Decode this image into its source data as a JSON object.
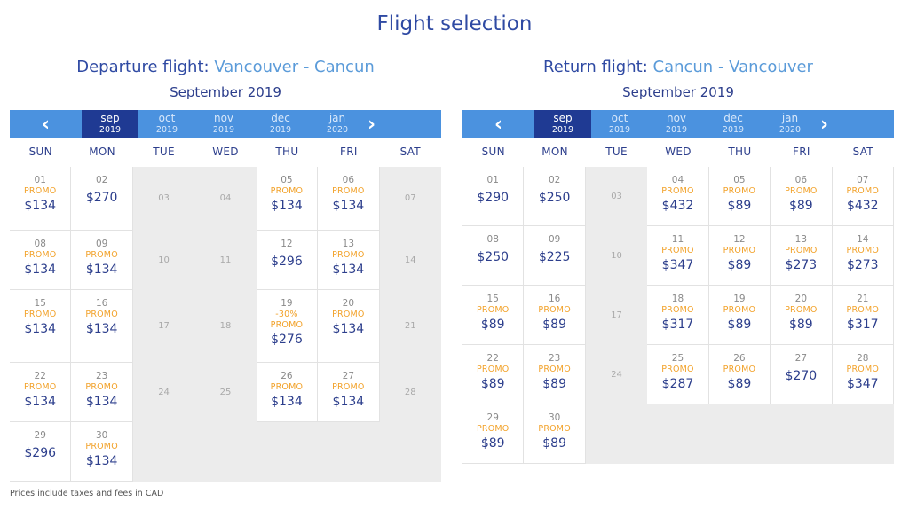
{
  "page_title": "Flight selection",
  "footnote": "Prices include taxes and fees in CAD",
  "weekdays": [
    "SUN",
    "MON",
    "TUE",
    "WED",
    "THU",
    "FRI",
    "SAT"
  ],
  "months": [
    {
      "m": "sep",
      "y": "2019"
    },
    {
      "m": "oct",
      "y": "2019"
    },
    {
      "m": "nov",
      "y": "2019"
    },
    {
      "m": "dec",
      "y": "2019"
    },
    {
      "m": "jan",
      "y": "2020"
    }
  ],
  "icons": {
    "prev": "chevron-left-icon",
    "next": "chevron-right-icon"
  },
  "colors": {
    "promo": "#f2a22a",
    "price": "#2c3e8c",
    "bar": "#4b92df",
    "active_month": "#1f3a93",
    "unavailable": "#ececec"
  },
  "departure": {
    "label": "Departure flight:",
    "route": "Vancouver - Cancun",
    "month": "September 2019",
    "active_month": 0,
    "days": [
      {
        "d": "01",
        "tags": [
          "PROMO"
        ],
        "p": "$134"
      },
      {
        "d": "02",
        "tags": [],
        "p": "$270"
      },
      {
        "d": "03"
      },
      {
        "d": "04"
      },
      {
        "d": "05",
        "tags": [
          "PROMO"
        ],
        "p": "$134"
      },
      {
        "d": "06",
        "tags": [
          "PROMO"
        ],
        "p": "$134"
      },
      {
        "d": "07"
      },
      {
        "d": "08",
        "tags": [
          "PROMO"
        ],
        "p": "$134"
      },
      {
        "d": "09",
        "tags": [
          "PROMO"
        ],
        "p": "$134"
      },
      {
        "d": "10"
      },
      {
        "d": "11"
      },
      {
        "d": "12",
        "tags": [],
        "p": "$296"
      },
      {
        "d": "13",
        "tags": [
          "PROMO"
        ],
        "p": "$134"
      },
      {
        "d": "14"
      },
      {
        "d": "15",
        "tags": [
          "PROMO"
        ],
        "p": "$134"
      },
      {
        "d": "16",
        "tags": [
          "PROMO"
        ],
        "p": "$134"
      },
      {
        "d": "17"
      },
      {
        "d": "18"
      },
      {
        "d": "19",
        "tags": [
          "-30%",
          "PROMO"
        ],
        "p": "$276"
      },
      {
        "d": "20",
        "tags": [
          "PROMO"
        ],
        "p": "$134"
      },
      {
        "d": "21"
      },
      {
        "d": "22",
        "tags": [
          "PROMO"
        ],
        "p": "$134"
      },
      {
        "d": "23",
        "tags": [
          "PROMO"
        ],
        "p": "$134"
      },
      {
        "d": "24"
      },
      {
        "d": "25"
      },
      {
        "d": "26",
        "tags": [
          "PROMO"
        ],
        "p": "$134"
      },
      {
        "d": "27",
        "tags": [
          "PROMO"
        ],
        "p": "$134"
      },
      {
        "d": "28"
      },
      {
        "d": "29",
        "tags": [],
        "p": "$296"
      },
      {
        "d": "30",
        "tags": [
          "PROMO"
        ],
        "p": "$134"
      }
    ]
  },
  "return": {
    "label": "Return flight:",
    "route": "Cancun - Vancouver",
    "month": "September 2019",
    "active_month": 0,
    "days": [
      {
        "d": "01",
        "tags": [],
        "p": "$290"
      },
      {
        "d": "02",
        "tags": [],
        "p": "$250"
      },
      {
        "d": "03"
      },
      {
        "d": "04",
        "tags": [
          "PROMO"
        ],
        "p": "$432"
      },
      {
        "d": "05",
        "tags": [
          "PROMO"
        ],
        "p": "$89"
      },
      {
        "d": "06",
        "tags": [
          "PROMO"
        ],
        "p": "$89"
      },
      {
        "d": "07",
        "tags": [
          "PROMO"
        ],
        "p": "$432"
      },
      {
        "d": "08",
        "tags": [],
        "p": "$250"
      },
      {
        "d": "09",
        "tags": [],
        "p": "$225"
      },
      {
        "d": "10"
      },
      {
        "d": "11",
        "tags": [
          "PROMO"
        ],
        "p": "$347"
      },
      {
        "d": "12",
        "tags": [
          "PROMO"
        ],
        "p": "$89"
      },
      {
        "d": "13",
        "tags": [
          "PROMO"
        ],
        "p": "$273"
      },
      {
        "d": "14",
        "tags": [
          "PROMO"
        ],
        "p": "$273"
      },
      {
        "d": "15",
        "tags": [
          "PROMO"
        ],
        "p": "$89"
      },
      {
        "d": "16",
        "tags": [
          "PROMO"
        ],
        "p": "$89"
      },
      {
        "d": "17"
      },
      {
        "d": "18",
        "tags": [
          "PROMO"
        ],
        "p": "$317"
      },
      {
        "d": "19",
        "tags": [
          "PROMO"
        ],
        "p": "$89"
      },
      {
        "d": "20",
        "tags": [
          "PROMO"
        ],
        "p": "$89"
      },
      {
        "d": "21",
        "tags": [
          "PROMO"
        ],
        "p": "$317"
      },
      {
        "d": "22",
        "tags": [
          "PROMO"
        ],
        "p": "$89"
      },
      {
        "d": "23",
        "tags": [
          "PROMO"
        ],
        "p": "$89"
      },
      {
        "d": "24"
      },
      {
        "d": "25",
        "tags": [
          "PROMO"
        ],
        "p": "$287"
      },
      {
        "d": "26",
        "tags": [
          "PROMO"
        ],
        "p": "$89"
      },
      {
        "d": "27",
        "tags": [],
        "p": "$270"
      },
      {
        "d": "28",
        "tags": [
          "PROMO"
        ],
        "p": "$347"
      },
      {
        "d": "29",
        "tags": [
          "PROMO"
        ],
        "p": "$89"
      },
      {
        "d": "30",
        "tags": [
          "PROMO"
        ],
        "p": "$89"
      }
    ]
  }
}
